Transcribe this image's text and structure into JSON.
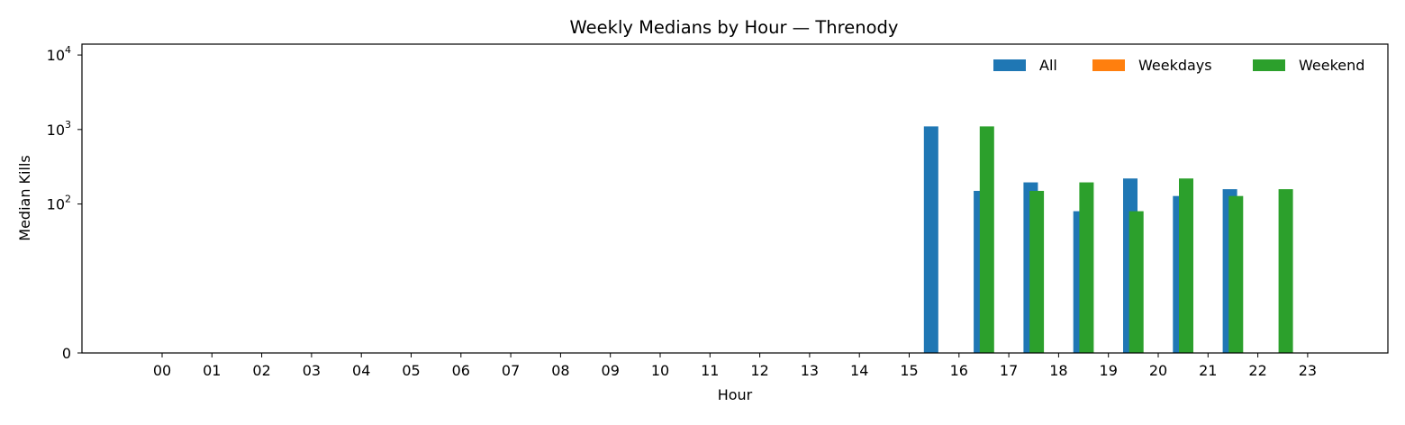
{
  "chart_data": {
    "type": "bar",
    "title": "Weekly Medians by Hour — Threnody",
    "xlabel": "Hour",
    "ylabel": "Median Kills",
    "yscale": "symlog",
    "ylim": [
      0,
      14000
    ],
    "yticks": [
      {
        "value": 0,
        "label": "0",
        "sup": ""
      },
      {
        "value": 100,
        "label": "10",
        "sup": "2"
      },
      {
        "value": 1000,
        "label": "10",
        "sup": "3"
      },
      {
        "value": 10000,
        "label": "10",
        "sup": "4"
      }
    ],
    "categories": [
      "00",
      "01",
      "02",
      "03",
      "04",
      "05",
      "06",
      "07",
      "08",
      "09",
      "10",
      "11",
      "12",
      "13",
      "14",
      "15",
      "16",
      "17",
      "18",
      "19",
      "20",
      "21",
      "22",
      "23"
    ],
    "series": [
      {
        "name": "All",
        "color": "#1f77b4",
        "values": [
          0,
          0,
          0,
          0,
          0,
          0,
          0,
          0,
          0,
          0,
          0,
          0,
          0,
          0,
          0,
          0,
          1100,
          150,
          195,
          80,
          220,
          128,
          158,
          0
        ]
      },
      {
        "name": "Weekdays",
        "color": "#ff7f0e",
        "values": [
          0,
          0,
          0,
          0,
          0,
          0,
          0,
          0,
          0,
          0,
          0,
          0,
          0,
          0,
          0,
          0,
          0,
          0,
          0,
          0,
          0,
          0,
          0,
          0
        ]
      },
      {
        "name": "Weekend",
        "color": "#2ca02c",
        "values": [
          0,
          0,
          0,
          0,
          0,
          0,
          0,
          0,
          0,
          0,
          0,
          0,
          0,
          0,
          0,
          0,
          1100,
          150,
          195,
          80,
          220,
          128,
          158,
          0
        ]
      }
    ],
    "legend": {
      "placement": "top-right",
      "columns": 3
    },
    "grid": false
  }
}
